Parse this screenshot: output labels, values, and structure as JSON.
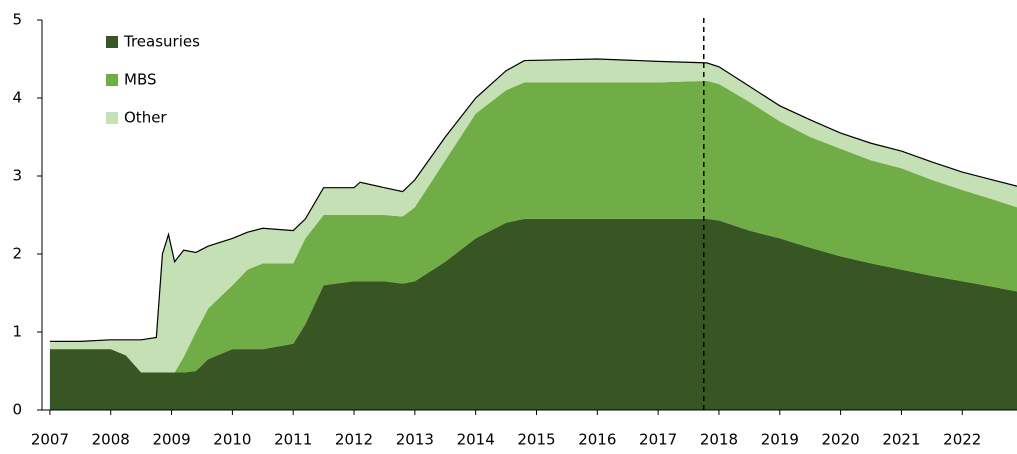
{
  "chart_data": {
    "type": "stacked_area",
    "x": [
      2007.0,
      2007.5,
      2008.0,
      2008.25,
      2008.5,
      2008.75,
      2008.85,
      2008.95,
      2009.05,
      2009.2,
      2009.4,
      2009.6,
      2010.0,
      2010.25,
      2010.5,
      2011.0,
      2011.2,
      2011.5,
      2012.0,
      2012.1,
      2012.5,
      2012.8,
      2013.0,
      2013.5,
      2014.0,
      2014.5,
      2014.8,
      2016.0,
      2017.0,
      2017.8,
      2018.0,
      2018.5,
      2019.0,
      2019.5,
      2020.0,
      2020.5,
      2021.0,
      2021.5,
      2022.0,
      2022.5,
      2022.9
    ],
    "series": [
      {
        "name": "Treasuries",
        "color": "#375623",
        "values": [
          0.78,
          0.78,
          0.78,
          0.7,
          0.48,
          0.48,
          0.48,
          0.48,
          0.48,
          0.48,
          0.5,
          0.65,
          0.78,
          0.78,
          0.78,
          0.85,
          1.1,
          1.6,
          1.65,
          1.65,
          1.65,
          1.62,
          1.65,
          1.9,
          2.2,
          2.4,
          2.45,
          2.45,
          2.45,
          2.45,
          2.43,
          2.3,
          2.2,
          2.08,
          1.97,
          1.88,
          1.8,
          1.72,
          1.65,
          1.58,
          1.52
        ]
      },
      {
        "name": "MBS",
        "color": "#70ad47",
        "values": [
          0,
          0,
          0,
          0,
          0,
          0,
          0,
          0,
          0,
          0.2,
          0.5,
          0.65,
          0.82,
          1.02,
          1.1,
          1.03,
          1.1,
          0.9,
          0.85,
          0.85,
          0.85,
          0.86,
          0.95,
          1.3,
          1.6,
          1.7,
          1.75,
          1.75,
          1.75,
          1.77,
          1.75,
          1.65,
          1.5,
          1.42,
          1.38,
          1.32,
          1.3,
          1.23,
          1.17,
          1.12,
          1.08
        ]
      },
      {
        "name": "Other",
        "color": "#c5e0b4",
        "values": [
          0.1,
          0.1,
          0.12,
          0.2,
          0.42,
          0.45,
          1.52,
          1.77,
          1.42,
          1.37,
          1.02,
          0.8,
          0.6,
          0.48,
          0.45,
          0.42,
          0.25,
          0.35,
          0.35,
          0.42,
          0.35,
          0.32,
          0.35,
          0.3,
          0.2,
          0.25,
          0.28,
          0.3,
          0.27,
          0.23,
          0.22,
          0.2,
          0.2,
          0.22,
          0.2,
          0.22,
          0.22,
          0.23,
          0.23,
          0.25,
          0.27
        ]
      }
    ],
    "xlim": [
      2006.87,
      2022.9
    ],
    "xticks": [
      2007,
      2008,
      2009,
      2010,
      2011,
      2012,
      2013,
      2014,
      2015,
      2016,
      2017,
      2018,
      2019,
      2020,
      2021,
      2022
    ],
    "ylim": [
      0,
      5
    ],
    "yticks": [
      0,
      1,
      2,
      3,
      4,
      5
    ],
    "vline": 2017.75,
    "grid": false,
    "legend": "upper left"
  }
}
